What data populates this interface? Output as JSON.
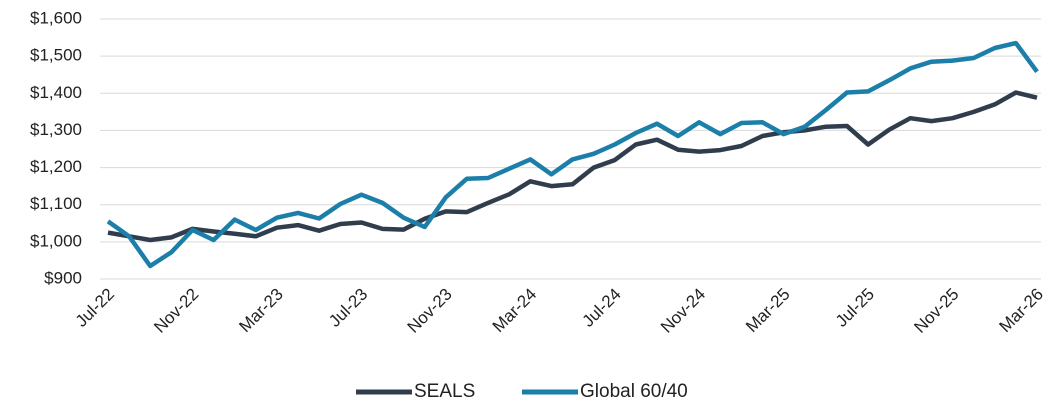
{
  "chart_data": {
    "type": "line",
    "categories": [
      "Jul-22",
      null,
      null,
      null,
      "Nov-22",
      null,
      null,
      null,
      "Mar-23",
      null,
      null,
      null,
      "Jul-23",
      null,
      null,
      null,
      "Nov-23",
      null,
      null,
      null,
      "Mar-24",
      null,
      null,
      null,
      "Jul-24",
      null,
      null,
      null,
      "Nov-24",
      null,
      null,
      null,
      "Mar-25",
      null,
      null,
      null,
      "Jul-25",
      null,
      null,
      null,
      "Nov-25",
      null,
      null,
      null,
      "Mar-26"
    ],
    "series": [
      {
        "name": "SEALS",
        "color": "#2f3d4c",
        "values": [
          1025,
          1015,
          1005,
          1012,
          1035,
          1028,
          1022,
          1015,
          1038,
          1045,
          1030,
          1048,
          1052,
          1035,
          1033,
          1062,
          1082,
          1080,
          1105,
          1128,
          1163,
          1150,
          1155,
          1200,
          1220,
          1262,
          1275,
          1248,
          1243,
          1247,
          1258,
          1285,
          1295,
          1300,
          1310,
          1312,
          1262,
          1302,
          1333,
          1325,
          1333,
          1350,
          1370,
          1402,
          1388
        ]
      },
      {
        "name": "Global 60/40",
        "color": "#1b7fa9",
        "values": [
          1055,
          1015,
          935,
          972,
          1032,
          1005,
          1060,
          1032,
          1065,
          1078,
          1063,
          1102,
          1127,
          1105,
          1065,
          1040,
          1120,
          1170,
          1172,
          1197,
          1222,
          1182,
          1222,
          1237,
          1262,
          1293,
          1318,
          1285,
          1322,
          1290,
          1320,
          1322,
          1290,
          1310,
          1355,
          1402,
          1405,
          1435,
          1467,
          1485,
          1488,
          1495,
          1522,
          1535,
          1458
        ]
      }
    ],
    "ylim": [
      900,
      1600
    ],
    "yticks": [
      {
        "value": 900,
        "label": "$900"
      },
      {
        "value": 1000,
        "label": "$1,000"
      },
      {
        "value": 1100,
        "label": "$1,100"
      },
      {
        "value": 1200,
        "label": "$1,200"
      },
      {
        "value": 1300,
        "label": "$1,300"
      },
      {
        "value": 1400,
        "label": "$1,400"
      },
      {
        "value": 1500,
        "label": "$1,500"
      },
      {
        "value": 1600,
        "label": "$1,600"
      }
    ],
    "grid": true,
    "legend": "bottom"
  }
}
